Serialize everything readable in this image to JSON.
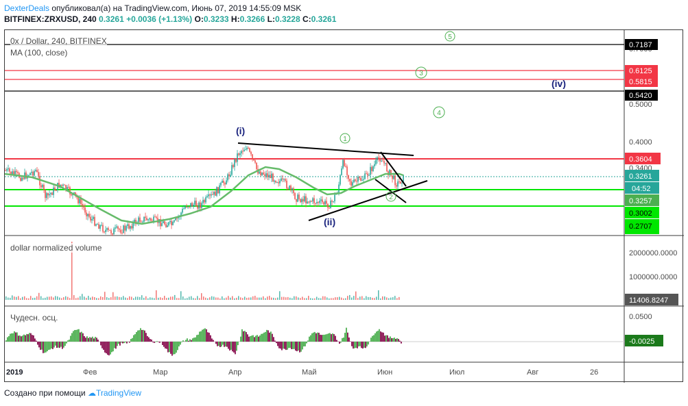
{
  "header": {
    "author": "DexterDeals",
    "published_text": " опубликовал(а) на TradingView.com, Июнь 07, 2019 14:55:09 MSK",
    "symbol_line": "BITFINEX:ZRXUSD, 240",
    "last": "0.3261",
    "change": "+0.0036 (+1.13%)",
    "o_label": "O:",
    "o_val": "0.3233",
    "h_label": "H:",
    "h_val": "0.3266",
    "l_label": "L:",
    "l_val": "0.3228",
    "c_label": "C:",
    "c_val": "0.3261"
  },
  "main_pane": {
    "title": "0x / Dollar, 240, BITFINEX",
    "ma_label": "MA (100, close)",
    "axis_ticks": [
      "0.7000",
      "0.5000",
      "0.4000",
      "0.3400"
    ],
    "price_tags": [
      {
        "text": "0.7187",
        "bg": "#000000"
      },
      {
        "text": "0.6125",
        "bg": "#f23645"
      },
      {
        "text": "0.5815",
        "bg": "#f23645"
      },
      {
        "text": "0.5420",
        "bg": "#000000"
      },
      {
        "text": "0.3604",
        "bg": "#f23645"
      },
      {
        "text": "0.3261",
        "bg": "#26a69a"
      },
      {
        "text": "04:52",
        "bg": "#26a69a"
      },
      {
        "text": "0.3257",
        "bg": "#4caf50"
      },
      {
        "text": "0.3002",
        "bg": "#00e600"
      },
      {
        "text": "0.2707",
        "bg": "#00e600"
      }
    ],
    "wave_labels": {
      "i": "(i)",
      "ii": "(ii)",
      "iv": "(iv)",
      "c1": "1",
      "c2": "2",
      "c3": "3",
      "c4": "4",
      "c5": "5"
    }
  },
  "volume_pane": {
    "title": "dollar normalized volume",
    "ticks": [
      "2000000.0000",
      "1000000.0000"
    ],
    "tag": "11406.8247"
  },
  "osc_pane": {
    "title": "Чудесн. осц.",
    "ticks": [
      "0.0500"
    ],
    "tag": "-0.0025"
  },
  "time_axis": [
    "2019",
    "Фев",
    "Мар",
    "Апр",
    "Май",
    "Июн",
    "Июл",
    "Авг",
    "26"
  ],
  "footer": {
    "prefix": "Создано при помощи ",
    "brand": "TradingView"
  },
  "colors": {
    "up": "#26a69a",
    "down": "#ef5350",
    "ma": "#66bb6a",
    "resistance": "#f23645",
    "support": "#00e600",
    "wave_blue": "#1a237e",
    "wave_green": "#4caf50",
    "osc_up": "#4caf50",
    "osc_down": "#880e4f"
  }
}
